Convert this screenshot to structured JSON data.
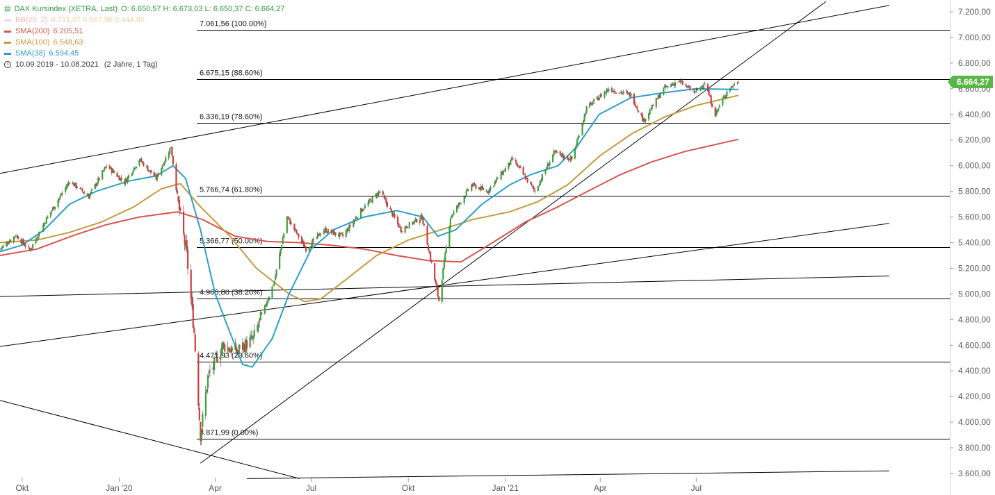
{
  "header": {
    "instrument": "DAX Kursindex (XETRA, Last)",
    "ohlc": "O: 6.650,57  H: 6.673,03  L: 6.650,37  C: 6.664,27",
    "range_text": "10.09.2019 - 10.08.2021",
    "range_span": "(2 Jahre, 1 Tag)"
  },
  "indicators": [
    {
      "label": "BB(20, 2)",
      "values": "6.731,07  6.587,96  6.444,85",
      "color": "#e8a4a4",
      "faded": true
    },
    {
      "label": "SMA(200)",
      "values": "6.205,51",
      "color": "#d9534f",
      "faded": false
    },
    {
      "label": "SMA(100)",
      "values": "6.548,63",
      "color": "#c49a3c",
      "faded": false
    },
    {
      "label": "SMA(38)",
      "values": "6.594,45",
      "color": "#2a9fc9",
      "faded": false
    }
  ],
  "last_price": "6.664,27",
  "colors": {
    "up": "#3ca03c",
    "down": "#d63a3a",
    "sma38": "#2a9fc9",
    "sma100": "#c49a3c",
    "sma200": "#d9534f",
    "last_badge": "#58b846",
    "fib_lines": "#000000",
    "trend_lines": "#000000"
  },
  "chart_data": {
    "type": "line",
    "title": "DAX Kursindex (XETRA, Last)",
    "xlabel": "",
    "ylabel": "",
    "x_tick_labels": [
      "Okt",
      "Jan '20",
      "Apr",
      "Jul",
      "Okt",
      "Jan '21",
      "Apr",
      "Jul"
    ],
    "y_tick_labels": [
      "3.600,00",
      "3.800,00",
      "4.000,00",
      "4.200,00",
      "4.400,00",
      "4.600,00",
      "4.800,00",
      "5.000,00",
      "5.200,00",
      "5.400,00",
      "5.600,00",
      "5.800,00",
      "6.000,00",
      "6.200,00",
      "6.400,00",
      "6.600,00",
      "6.800,00",
      "7.000,00",
      "7.200,00"
    ],
    "ylim": [
      3600,
      7200
    ],
    "xlim": [
      "2019-09-10",
      "2021-08-10"
    ],
    "grid": false,
    "fib_levels": [
      {
        "label": "7.061,56 (100.00%)",
        "value": 7061.56
      },
      {
        "label": "6.675,15 (88.60%)",
        "value": 6675.15
      },
      {
        "label": "6.336,19 (78.60%)",
        "value": 6336.19
      },
      {
        "label": "5.766,74 (61.80%)",
        "value": 5766.74
      },
      {
        "label": "5.366,77 (50.00%)",
        "value": 5366.77
      },
      {
        "label": "4.966,80 (38.20%)",
        "value": 4966.8
      },
      {
        "label": "4.471,93 (23.60%)",
        "value": 4471.93
      },
      {
        "label": "3.871,99 (0.00%)",
        "value": 3871.99
      }
    ],
    "price_path": [
      [
        "2019-09-10",
        5350
      ],
      [
        "2019-09-25",
        5460
      ],
      [
        "2019-10-08",
        5340
      ],
      [
        "2019-10-25",
        5600
      ],
      [
        "2019-11-15",
        5880
      ],
      [
        "2019-12-03",
        5760
      ],
      [
        "2019-12-20",
        6000
      ],
      [
        "2020-01-06",
        5870
      ],
      [
        "2020-01-20",
        6050
      ],
      [
        "2020-02-05",
        5900
      ],
      [
        "2020-02-19",
        6150
      ],
      [
        "2020-02-26",
        5700
      ],
      [
        "2020-03-05",
        5300
      ],
      [
        "2020-03-12",
        4700
      ],
      [
        "2020-03-18",
        3900
      ],
      [
        "2020-03-25",
        4350
      ],
      [
        "2020-04-08",
        4600
      ],
      [
        "2020-04-21",
        4550
      ],
      [
        "2020-05-07",
        4650
      ],
      [
        "2020-05-27",
        5100
      ],
      [
        "2020-06-08",
        5600
      ],
      [
        "2020-06-26",
        5350
      ],
      [
        "2020-07-13",
        5500
      ],
      [
        "2020-07-31",
        5450
      ],
      [
        "2020-08-17",
        5650
      ],
      [
        "2020-09-04",
        5800
      ],
      [
        "2020-09-24",
        5500
      ],
      [
        "2020-10-14",
        5600
      ],
      [
        "2020-10-30",
        4950
      ],
      [
        "2020-11-10",
        5600
      ],
      [
        "2020-11-30",
        5850
      ],
      [
        "2020-12-15",
        5800
      ],
      [
        "2021-01-08",
        6050
      ],
      [
        "2021-01-29",
        5800
      ],
      [
        "2021-02-16",
        6100
      ],
      [
        "2021-03-05",
        6050
      ],
      [
        "2021-03-19",
        6450
      ],
      [
        "2021-04-09",
        6600
      ],
      [
        "2021-04-30",
        6550
      ],
      [
        "2021-05-12",
        6350
      ],
      [
        "2021-05-31",
        6600
      ],
      [
        "2021-06-14",
        6660
      ],
      [
        "2021-06-30",
        6570
      ],
      [
        "2021-07-09",
        6650
      ],
      [
        "2021-07-19",
        6400
      ],
      [
        "2021-07-30",
        6580
      ],
      [
        "2021-08-10",
        6664.27
      ]
    ],
    "series": [
      {
        "name": "SMA(38)",
        "values": [
          [
            "2019-09-10",
            5330
          ],
          [
            "2019-10-01",
            5380
          ],
          [
            "2019-10-22",
            5500
          ],
          [
            "2019-11-15",
            5700
          ],
          [
            "2019-12-10",
            5800
          ],
          [
            "2020-01-10",
            5880
          ],
          [
            "2020-02-05",
            5920
          ],
          [
            "2020-02-21",
            6000
          ],
          [
            "2020-03-04",
            5900
          ],
          [
            "2020-03-18",
            5500
          ],
          [
            "2020-04-01",
            5000
          ],
          [
            "2020-04-15",
            4700
          ],
          [
            "2020-04-27",
            4450
          ],
          [
            "2020-05-06",
            4430
          ],
          [
            "2020-05-25",
            4650
          ],
          [
            "2020-06-10",
            5000
          ],
          [
            "2020-07-01",
            5350
          ],
          [
            "2020-07-22",
            5500
          ],
          [
            "2020-08-20",
            5600
          ],
          [
            "2020-09-20",
            5650
          ],
          [
            "2020-10-15",
            5600
          ],
          [
            "2020-10-29",
            5450
          ],
          [
            "2020-11-15",
            5500
          ],
          [
            "2020-12-10",
            5700
          ],
          [
            "2021-01-05",
            5850
          ],
          [
            "2021-01-25",
            5930
          ],
          [
            "2021-02-20",
            6000
          ],
          [
            "2021-03-10",
            6150
          ],
          [
            "2021-03-31",
            6400
          ],
          [
            "2021-04-30",
            6530
          ],
          [
            "2021-06-01",
            6570
          ],
          [
            "2021-07-01",
            6600
          ],
          [
            "2021-08-10",
            6594.45
          ]
        ]
      },
      {
        "name": "SMA(100)",
        "values": [
          [
            "2019-09-10",
            5400
          ],
          [
            "2019-10-15",
            5420
          ],
          [
            "2019-11-15",
            5480
          ],
          [
            "2019-12-15",
            5560
          ],
          [
            "2020-01-15",
            5680
          ],
          [
            "2020-02-10",
            5820
          ],
          [
            "2020-02-28",
            5860
          ],
          [
            "2020-03-18",
            5680
          ],
          [
            "2020-04-15",
            5450
          ],
          [
            "2020-05-10",
            5200
          ],
          [
            "2020-06-10",
            5000
          ],
          [
            "2020-06-25",
            4940
          ],
          [
            "2020-07-10",
            4960
          ],
          [
            "2020-08-01",
            5100
          ],
          [
            "2020-09-01",
            5300
          ],
          [
            "2020-10-01",
            5420
          ],
          [
            "2020-11-01",
            5500
          ],
          [
            "2020-12-01",
            5580
          ],
          [
            "2021-01-05",
            5640
          ],
          [
            "2021-02-01",
            5720
          ],
          [
            "2021-03-01",
            5850
          ],
          [
            "2021-04-01",
            6080
          ],
          [
            "2021-05-01",
            6250
          ],
          [
            "2021-06-01",
            6380
          ],
          [
            "2021-07-01",
            6470
          ],
          [
            "2021-08-10",
            6548.63
          ]
        ]
      },
      {
        "name": "SMA(200)",
        "values": [
          [
            "2019-09-10",
            5300
          ],
          [
            "2019-10-15",
            5350
          ],
          [
            "2019-11-20",
            5460
          ],
          [
            "2019-12-20",
            5540
          ],
          [
            "2020-01-20",
            5600
          ],
          [
            "2020-02-25",
            5640
          ],
          [
            "2020-03-20",
            5580
          ],
          [
            "2020-04-20",
            5450
          ],
          [
            "2020-05-20",
            5410
          ],
          [
            "2020-06-20",
            5400
          ],
          [
            "2020-07-20",
            5380
          ],
          [
            "2020-08-20",
            5350
          ],
          [
            "2020-09-20",
            5300
          ],
          [
            "2020-10-20",
            5260
          ],
          [
            "2020-11-20",
            5250
          ],
          [
            "2020-12-20",
            5400
          ],
          [
            "2021-01-20",
            5560
          ],
          [
            "2021-02-20",
            5680
          ],
          [
            "2021-03-20",
            5800
          ],
          [
            "2021-04-20",
            5930
          ],
          [
            "2021-05-20",
            6030
          ],
          [
            "2021-06-20",
            6110
          ],
          [
            "2021-08-10",
            6205.51
          ]
        ]
      }
    ],
    "trend_lines": [
      {
        "from": [
          "2019-09-10",
          5940
        ],
        "to": [
          "2021-12-31",
          7250
        ]
      },
      {
        "from": [
          "2019-09-10",
          4980
        ],
        "to": [
          "2021-12-31",
          5140
        ]
      },
      {
        "from": [
          "2019-09-10",
          4590
        ],
        "to": [
          "2021-12-31",
          5550
        ]
      },
      {
        "from": [
          "2019-09-10",
          4170
        ],
        "to": [
          "2020-06-20",
          3560
        ]
      },
      {
        "from": [
          "2020-05-01",
          3560
        ],
        "to": [
          "2021-12-31",
          3620
        ]
      },
      {
        "from": [
          "2020-03-18",
          3680
        ],
        "to": [
          "2021-11-01",
          7280
        ]
      }
    ]
  }
}
